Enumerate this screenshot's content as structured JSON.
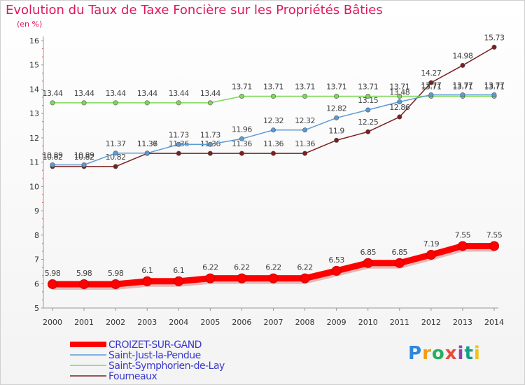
{
  "chart_data": {
    "type": "line",
    "title": "Evolution du Taux de Taxe Foncière sur les Propriétés Bâties",
    "subtitle": "(en %)",
    "x": [
      "2000",
      "2001",
      "2002",
      "2003",
      "2004",
      "2005",
      "2006",
      "2007",
      "2008",
      "2009",
      "2010",
      "2011",
      "2012",
      "2013",
      "2014"
    ],
    "ylim": [
      5,
      16
    ],
    "yticks": [
      "5",
      "6",
      "7",
      "8",
      "9",
      "10",
      "11",
      "12",
      "13",
      "14",
      "15",
      "16"
    ],
    "series": [
      {
        "name": "CROIZET-SUR-GAND",
        "color": "#ff0000",
        "values": [
          5.98,
          5.98,
          5.98,
          6.1,
          6.1,
          6.22,
          6.22,
          6.22,
          6.22,
          6.53,
          6.85,
          6.85,
          7.19,
          7.55,
          7.55
        ],
        "labels": [
          "5.98",
          "5.98",
          "5.98",
          "6.1",
          "6.1",
          "6.22",
          "6.22",
          "6.22",
          "6.22",
          "6.53",
          "6.85",
          "6.85",
          "7.19",
          "7.55",
          "7.55"
        ]
      },
      {
        "name": "Saint-Just-la-Pendue",
        "color": "#5b9bd5",
        "values": [
          10.89,
          10.89,
          11.37,
          11.37,
          11.73,
          11.73,
          11.96,
          12.32,
          12.32,
          12.82,
          13.15,
          13.48,
          13.77,
          13.77,
          13.77
        ],
        "labels": [
          "10.89",
          "10.89",
          "11.37",
          "11.37",
          "11.73",
          "11.73",
          "11.96",
          "12.32",
          "12.32",
          "12.82",
          "13.15",
          "13.48",
          "13.77",
          "13.77",
          "13.77"
        ]
      },
      {
        "name": "Saint-Symphorien-de-Lay",
        "color": "#7ed957",
        "values": [
          13.44,
          13.44,
          13.44,
          13.44,
          13.44,
          13.44,
          13.71,
          13.71,
          13.71,
          13.71,
          13.71,
          13.71,
          13.71,
          13.71,
          13.71
        ],
        "labels": [
          "13.44",
          "13.44",
          "13.44",
          "13.44",
          "13.44",
          "13.44",
          "13.71",
          "13.71",
          "13.71",
          "13.71",
          "13.71",
          "13.71",
          "13.71",
          "13.71",
          "13.71"
        ]
      },
      {
        "name": "Fourneaux",
        "color": "#7a1f1f",
        "values": [
          10.82,
          10.82,
          10.82,
          11.36,
          11.36,
          11.36,
          11.36,
          11.36,
          11.36,
          11.9,
          12.25,
          12.86,
          14.27,
          14.98,
          15.73
        ],
        "labels": [
          "10.82",
          "10.82",
          "10.82",
          "11.36",
          "11.36",
          "11.36",
          "11.36",
          "11.36",
          "11.36",
          "11.9",
          "12.25",
          "12.86",
          "14.27",
          "14.98",
          "15.73"
        ]
      }
    ],
    "legend_position": "bottom-left",
    "grid": false
  },
  "logo": {
    "letters": [
      "P",
      "r",
      "o",
      "x",
      "i",
      "t",
      "i"
    ],
    "colors": [
      "#2e86de",
      "#f39c12",
      "#27ae60",
      "#e74c3c",
      "#8e44ad",
      "#16a085",
      "#f1c40f"
    ]
  }
}
